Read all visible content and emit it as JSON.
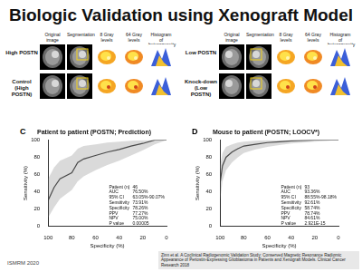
{
  "slide": {
    "title": "Biologic Validation using Xenograft Model",
    "footer_left": "ISMRM 2020",
    "footer_citation": "Zinn et al. A Coclinical Radiogenomic Validation Study: Conserved Magnetic Resonance Radiomic Appearance of Periostin-Expressing Glioblastoma in Patients and Xenograft Models. Clinical Cancer Research 2018"
  },
  "panels": [
    {
      "column_headers": [
        "Original image",
        "Segmentation",
        "8 Gray levels",
        "64 Gray levels",
        "Histogram of heterogeneity"
      ],
      "rows": [
        {
          "label": "High POSTN"
        },
        {
          "label": "Control (High POSTN)"
        }
      ]
    },
    {
      "column_headers": [
        "Original image",
        "Segmentation",
        "8 Gray levels",
        "64 Gray levels",
        "Histogram of heterogeneity"
      ],
      "rows": [
        {
          "label": "Low POSTN"
        },
        {
          "label": "Knock-down (Low POSTN)"
        }
      ]
    }
  ],
  "chart_data": [
    {
      "type": "line",
      "panel": "C",
      "title": "Patient to patient (POSTN; Prediction)",
      "x_label": "Specificity (%)",
      "y_label": "Sensitivity (%)",
      "x": [
        100,
        100,
        95,
        90,
        80,
        75,
        70,
        60,
        50,
        40,
        30,
        20,
        10,
        0
      ],
      "series": [
        {
          "color": "#222222",
          "values": [
            0,
            30,
            45,
            55,
            62,
            74,
            78,
            82,
            86,
            89,
            93,
            96,
            100,
            100
          ],
          "ci_lower": [
            0,
            10,
            22,
            32,
            42,
            52,
            58,
            65,
            71,
            76,
            82,
            88,
            95,
            100
          ],
          "ci_upper": [
            0,
            55,
            68,
            76,
            82,
            90,
            93,
            95,
            97,
            98,
            99,
            100,
            100,
            100
          ]
        }
      ],
      "xlim": [
        100,
        0
      ],
      "xticks": [
        100,
        80,
        60,
        40,
        20,
        0
      ],
      "ylim": [
        0,
        100
      ],
      "yticks": [
        0,
        20,
        40,
        60,
        80,
        100
      ],
      "grid": false,
      "stats": [
        [
          "Patient (n)",
          "46"
        ],
        [
          "AUC",
          "76.50%"
        ],
        [
          "95% CI",
          "63.05%-90.07%"
        ],
        [
          "Sensitivity",
          "73.91%"
        ],
        [
          "Specificity",
          "78.26%"
        ],
        [
          "PPV",
          "77.27%"
        ],
        [
          "NPV",
          "75.00%"
        ],
        [
          "P value",
          "0.00005"
        ]
      ]
    },
    {
      "type": "line",
      "panel": "D",
      "title": "Mouse to patient (POSTN; LOOCV*)",
      "x_label": "Specificity (%)",
      "y_label": "Sensitivity (%)",
      "x": [
        100,
        100,
        98,
        95,
        90,
        85,
        80,
        70,
        60,
        50,
        40,
        20,
        0
      ],
      "series": [
        {
          "color": "#222222",
          "values": [
            0,
            50,
            70,
            80,
            86,
            90,
            93,
            95,
            97,
            98,
            99,
            100,
            100
          ],
          "ci_lower": [
            0,
            30,
            52,
            65,
            74,
            80,
            85,
            89,
            92,
            94,
            96,
            98,
            100
          ],
          "ci_upper": [
            0,
            70,
            85,
            92,
            95,
            97,
            98,
            99,
            100,
            100,
            100,
            100,
            100
          ]
        }
      ],
      "xlim": [
        100,
        0
      ],
      "xticks": [
        100,
        80,
        60,
        40,
        20,
        0
      ],
      "ylim": [
        0,
        100
      ],
      "yticks": [
        0,
        20,
        40,
        60,
        80,
        100
      ],
      "grid": false,
      "stats": [
        [
          "Patient (n)",
          "93"
        ],
        [
          "AUC",
          "93.36%"
        ],
        [
          "95% CI",
          "88.55%-98.18%"
        ],
        [
          "Sensitivity",
          "92.61%"
        ],
        [
          "Specificity",
          "58.74%"
        ],
        [
          "PPV",
          "78.74%"
        ],
        [
          "NPV",
          "84.61%"
        ],
        [
          "P value",
          "2.921E-15"
        ]
      ]
    }
  ]
}
